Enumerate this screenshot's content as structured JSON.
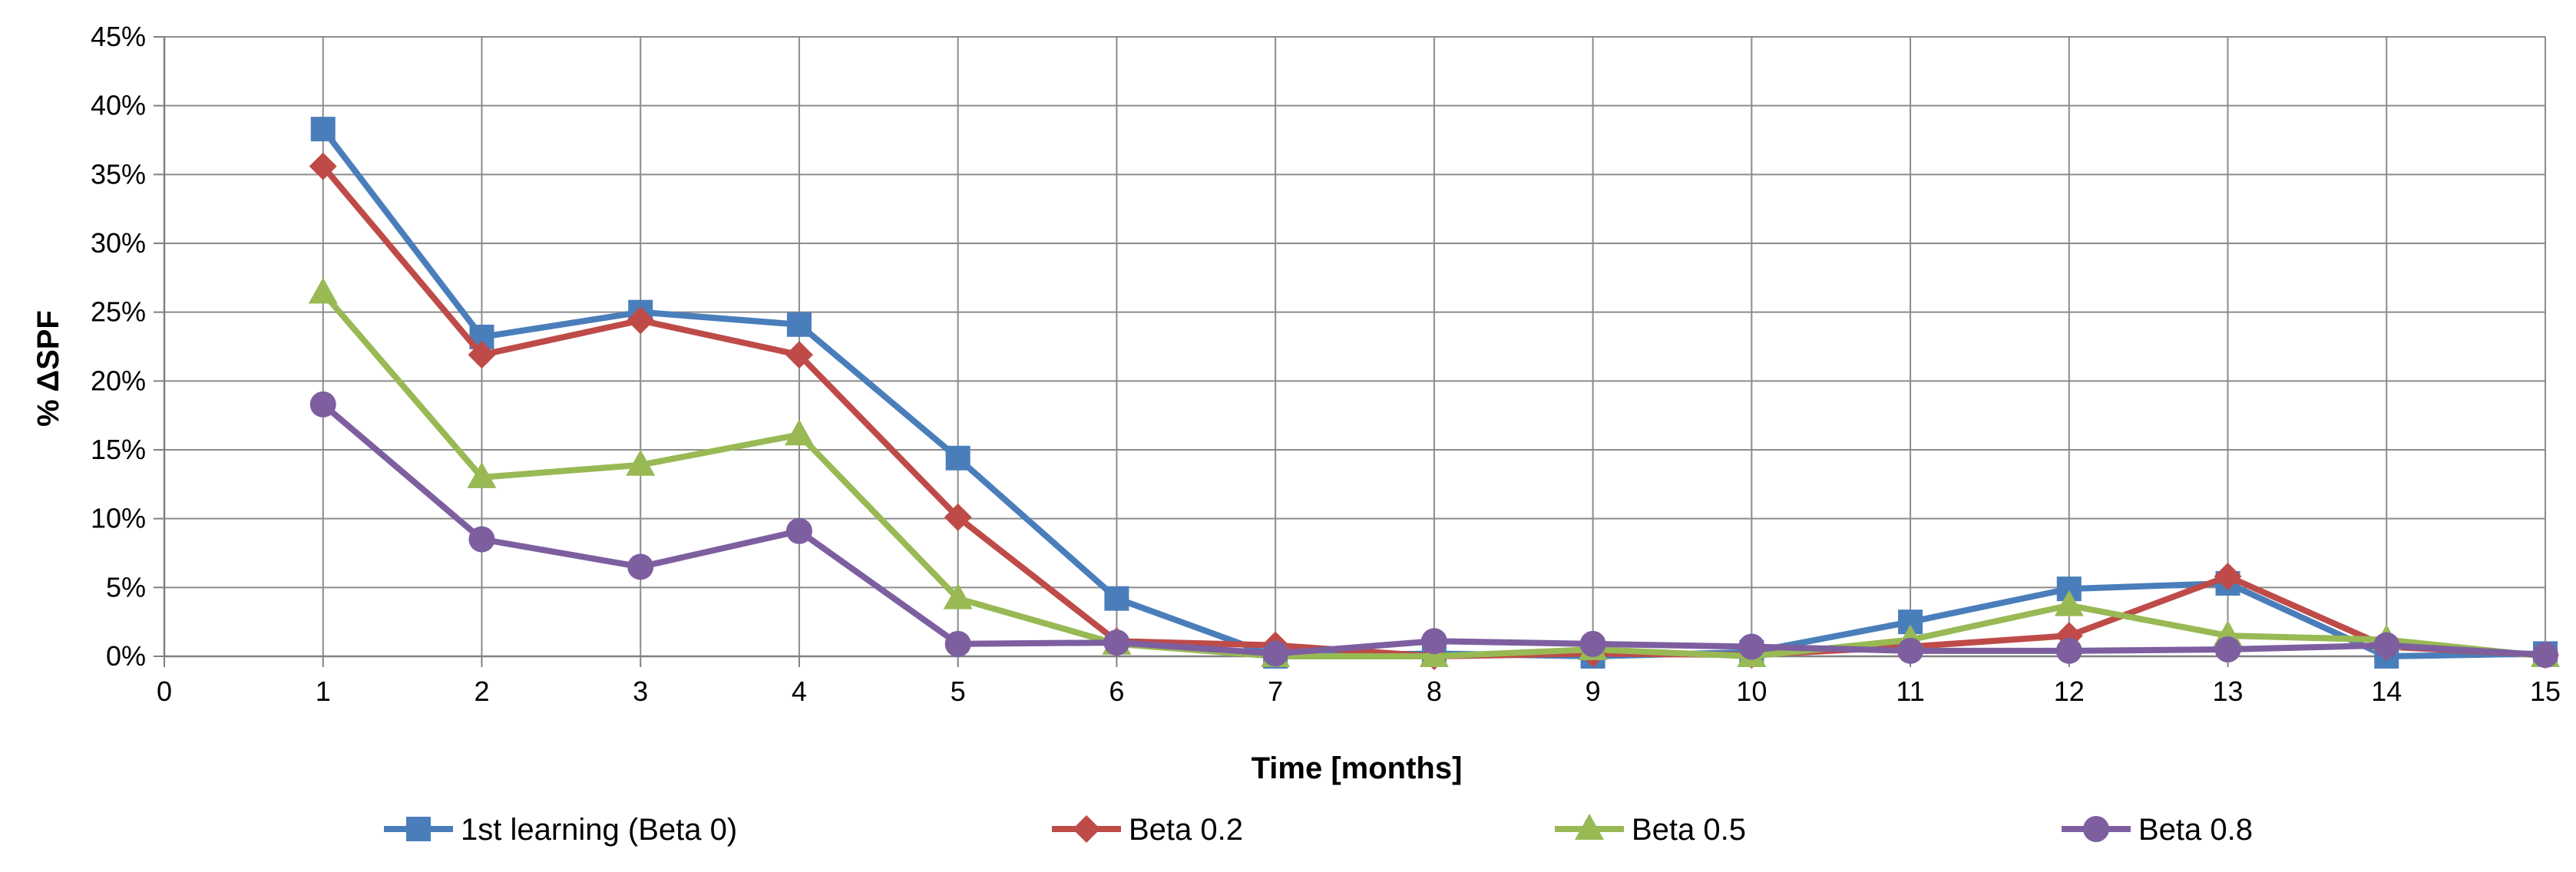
{
  "chart_data": {
    "type": "line",
    "title": "",
    "xlabel": "Time [months]",
    "ylabel": "% ΔSPF",
    "xlim": [
      0,
      15
    ],
    "ylim": [
      0,
      45
    ],
    "x_ticks": [
      0,
      1,
      2,
      3,
      4,
      5,
      6,
      7,
      8,
      9,
      10,
      11,
      12,
      13,
      14,
      15
    ],
    "y_ticks": [
      0,
      5,
      10,
      15,
      20,
      25,
      30,
      35,
      40,
      45
    ],
    "y_tick_format": "percent",
    "grid": true,
    "legend_position": "bottom",
    "x": [
      1,
      2,
      3,
      4,
      5,
      6,
      7,
      8,
      9,
      10,
      11,
      12,
      13,
      14,
      15
    ],
    "series": [
      {
        "name": "1st learning (Beta 0)",
        "color": "#4a7ebb",
        "marker": "square",
        "values": [
          38.3,
          23.2,
          25.0,
          24.1,
          14.4,
          4.2,
          0.0,
          0.2,
          0.0,
          0.3,
          2.5,
          4.9,
          5.3,
          0.0,
          0.2
        ]
      },
      {
        "name": "Beta 0.2",
        "color": "#be4b48",
        "marker": "diamond",
        "values": [
          35.6,
          21.9,
          24.4,
          21.9,
          10.1,
          1.1,
          0.8,
          0.0,
          0.2,
          0.1,
          0.7,
          1.5,
          5.8,
          0.7,
          0.1
        ]
      },
      {
        "name": "Beta 0.5",
        "color": "#98b954",
        "marker": "triangle",
        "values": [
          26.4,
          13.0,
          13.9,
          16.1,
          4.2,
          0.9,
          0.0,
          0.0,
          0.5,
          0.0,
          1.2,
          3.7,
          1.5,
          1.2,
          0.0
        ]
      },
      {
        "name": "Beta 0.8",
        "color": "#7d5fa0",
        "marker": "circle",
        "values": [
          18.3,
          8.5,
          6.5,
          9.1,
          0.9,
          1.0,
          0.2,
          1.1,
          0.9,
          0.7,
          0.4,
          0.4,
          0.5,
          0.8,
          0.1
        ]
      }
    ]
  }
}
